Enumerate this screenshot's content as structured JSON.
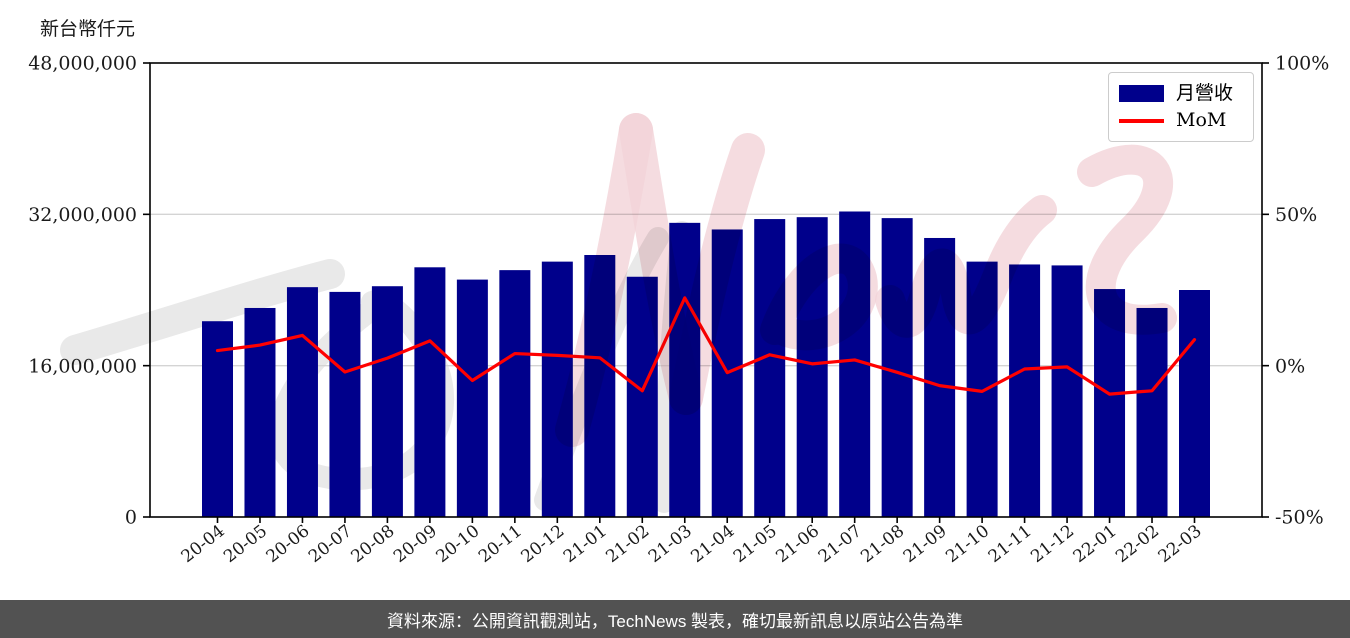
{
  "y_axis_title": "新台幣仟元",
  "legend": {
    "position": "top-right",
    "items": [
      {
        "label": "月營收",
        "type": "bar",
        "color": "#00008b"
      },
      {
        "label": "MoM",
        "type": "line",
        "color": "#ff0000"
      }
    ]
  },
  "watermark": {
    "text": "News",
    "gray": "#e9e9e9",
    "pink": "#f3d3d8"
  },
  "footer": {
    "text": "資料來源：公開資訊觀測站，TechNews 製表，確切最新訊息以原站公告為準",
    "bg": "#525252",
    "color": "#ffffff"
  },
  "chart_data": {
    "type": "bar+line",
    "title": "",
    "categories": [
      "20-04",
      "20-05",
      "20-06",
      "20-07",
      "20-08",
      "20-09",
      "20-10",
      "20-11",
      "20-12",
      "21-01",
      "21-02",
      "21-03",
      "21-04",
      "21-05",
      "21-06",
      "21-07",
      "21-08",
      "21-09",
      "21-10",
      "21-11",
      "21-12",
      "22-01",
      "22-02",
      "22-03"
    ],
    "series": [
      {
        "name": "月營收",
        "type": "bar",
        "axis": "left",
        "unit": "新台幣仟元",
        "color": "#00008b",
        "values": [
          20700000,
          22100000,
          24300000,
          23800000,
          24400000,
          26400000,
          25100000,
          26100000,
          27000000,
          27700000,
          25400000,
          31100000,
          30400000,
          31500000,
          31700000,
          32300000,
          31600000,
          29500000,
          27000000,
          26700000,
          26600000,
          24100000,
          22100000,
          24000000
        ]
      },
      {
        "name": "MoM",
        "type": "line",
        "axis": "right",
        "unit": "%",
        "color": "#ff0000",
        "values": [
          5.0,
          6.8,
          10.0,
          -2.1,
          2.5,
          8.2,
          -4.9,
          4.0,
          3.4,
          2.6,
          -8.3,
          22.4,
          -2.3,
          3.6,
          0.6,
          1.9,
          -2.2,
          -6.6,
          -8.5,
          -1.1,
          -0.4,
          -9.4,
          -8.3,
          8.6
        ]
      }
    ],
    "left_axis": {
      "title": "新台幣仟元",
      "range": [
        0,
        48000000
      ],
      "ticks": [
        0,
        16000000,
        32000000,
        48000000
      ],
      "tick_labels": [
        "0",
        "16,000,000",
        "32,000,000",
        "48,000,000"
      ]
    },
    "right_axis": {
      "title": "",
      "range": [
        -50,
        100
      ],
      "ticks": [
        -50,
        0,
        50,
        100
      ],
      "tick_labels": [
        "-50%",
        "0%",
        "50%",
        "100%"
      ]
    },
    "grid": {
      "horizontal": true,
      "color": "#d4d4d4"
    },
    "legend_position": "top-right"
  }
}
